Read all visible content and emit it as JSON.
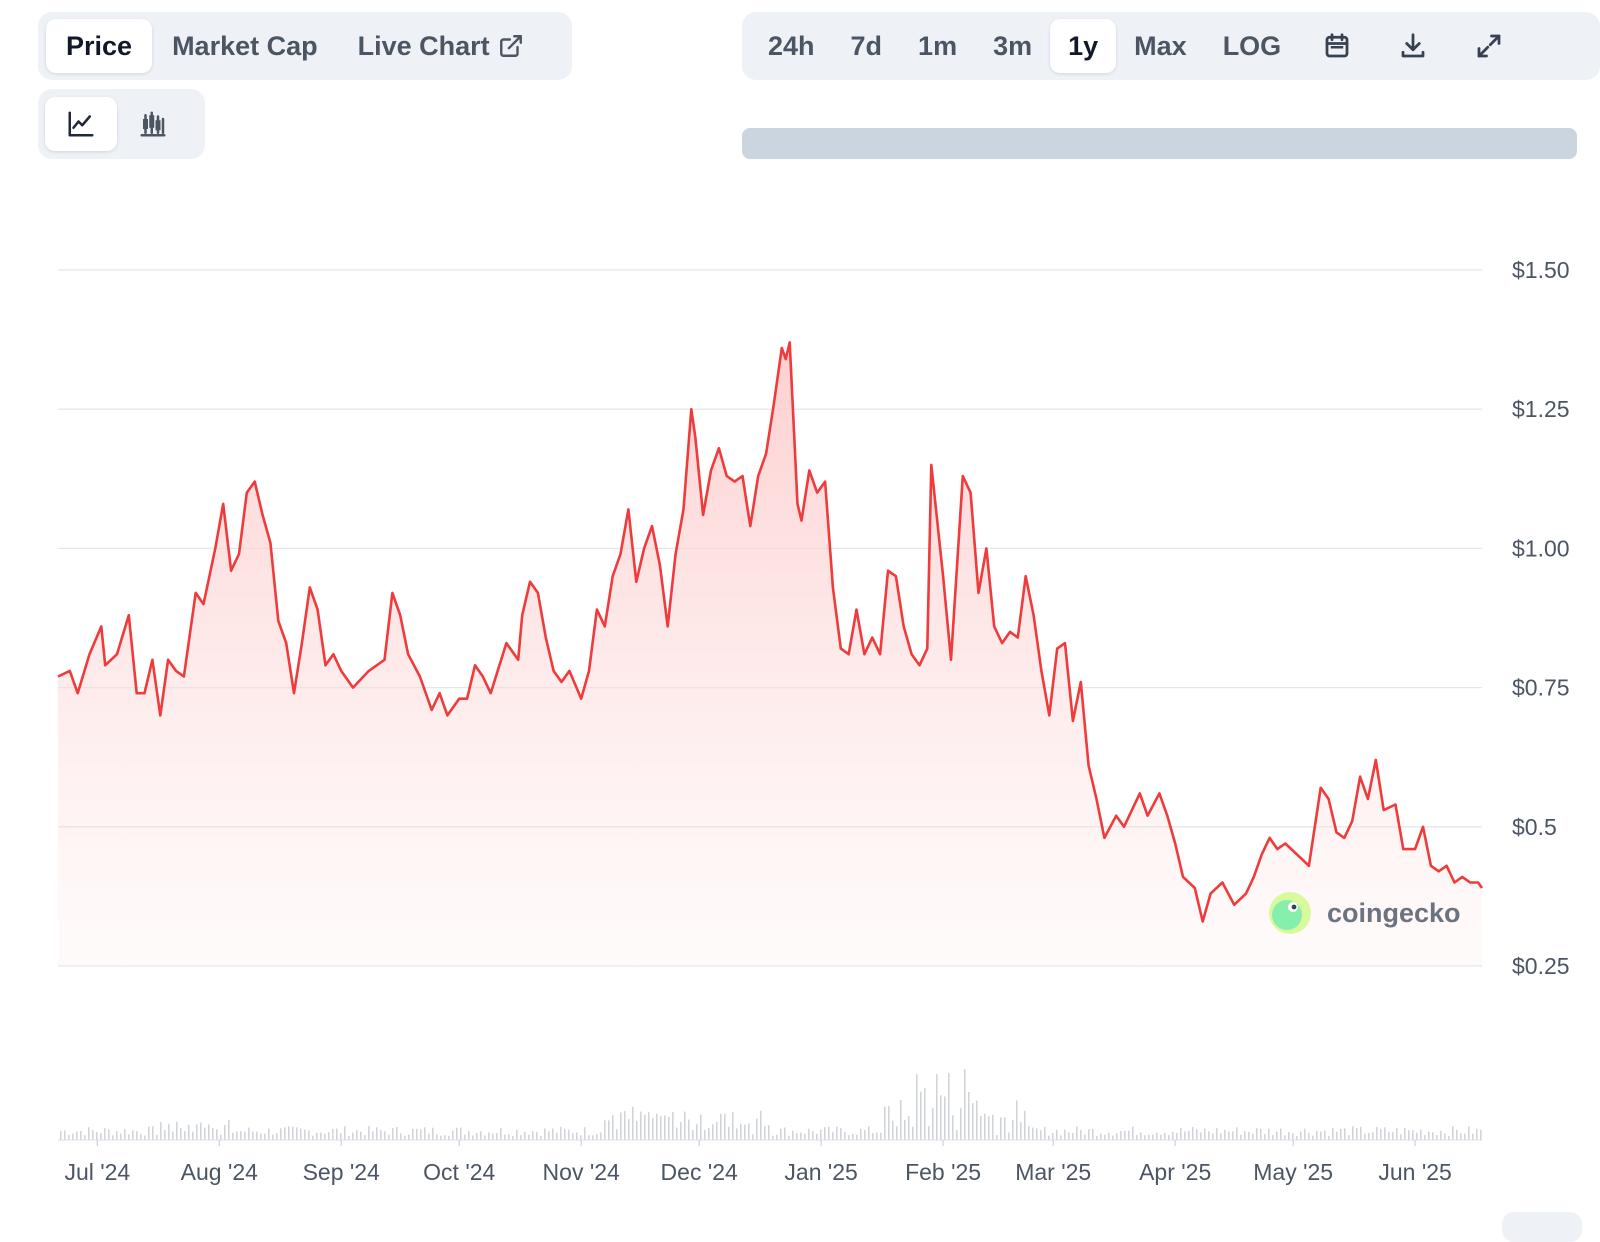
{
  "tabs": [
    {
      "label": "Price",
      "active": true
    },
    {
      "label": "Market Cap",
      "active": false
    },
    {
      "label": "Live Chart",
      "active": false,
      "icon": "external-link-icon"
    }
  ],
  "chart_types": [
    {
      "icon": "line-chart-icon",
      "active": true
    },
    {
      "icon": "candlestick-chart-icon",
      "active": false
    }
  ],
  "ranges": [
    {
      "label": "24h",
      "active": false
    },
    {
      "label": "7d",
      "active": false
    },
    {
      "label": "1m",
      "active": false
    },
    {
      "label": "3m",
      "active": false
    },
    {
      "label": "1y",
      "active": true
    },
    {
      "label": "Max",
      "active": false
    },
    {
      "label": "LOG",
      "active": false
    }
  ],
  "tool_icons": [
    "calendar-icon",
    "download-icon",
    "expand-icon"
  ],
  "watermark": {
    "text": "coingecko",
    "icon": "coingecko-logo-icon"
  },
  "colors": {
    "line": "#ef3b3b",
    "area_top": "#fecaca",
    "grid": "#e5e7eb",
    "volume": "#d1d5db"
  },
  "chart_data": {
    "type": "area",
    "title": "",
    "xlabel": "",
    "ylabel": "",
    "ylim": [
      0.25,
      1.5
    ],
    "yticks": [
      1.5,
      1.25,
      1.0,
      0.75,
      0.5,
      0.25
    ],
    "ytick_labels": [
      "$1.50",
      "$1.25",
      "$1.00",
      "$0.75",
      "$0.5",
      "$0.25"
    ],
    "xticks": [
      {
        "label": "Jul '24",
        "date": "2024-07-01"
      },
      {
        "label": "Aug '24",
        "date": "2024-08-01"
      },
      {
        "label": "Sep '24",
        "date": "2024-09-01"
      },
      {
        "label": "Oct '24",
        "date": "2024-10-01"
      },
      {
        "label": "Nov '24",
        "date": "2024-11-01"
      },
      {
        "label": "Dec '24",
        "date": "2024-12-01"
      },
      {
        "label": "Jan '25",
        "date": "2025-01-01"
      },
      {
        "label": "Feb '25",
        "date": "2025-02-01"
      },
      {
        "label": "Mar '25",
        "date": "2025-03-01"
      },
      {
        "label": "Apr '25",
        "date": "2025-04-01"
      },
      {
        "label": "May '25",
        "date": "2025-05-01"
      },
      {
        "label": "Jun '25",
        "date": "2025-06-01"
      }
    ],
    "x_range": [
      "2024-06-21",
      "2025-06-18"
    ],
    "grid": true,
    "series": [
      {
        "values": [
          [
            "2024-06-21",
            0.77
          ],
          [
            "2024-06-24",
            0.78
          ],
          [
            "2024-06-26",
            0.74
          ],
          [
            "2024-06-29",
            0.81
          ],
          [
            "2024-07-02",
            0.86
          ],
          [
            "2024-07-03",
            0.79
          ],
          [
            "2024-07-06",
            0.81
          ],
          [
            "2024-07-09",
            0.88
          ],
          [
            "2024-07-11",
            0.74
          ],
          [
            "2024-07-13",
            0.74
          ],
          [
            "2024-07-15",
            0.8
          ],
          [
            "2024-07-17",
            0.7
          ],
          [
            "2024-07-19",
            0.8
          ],
          [
            "2024-07-21",
            0.78
          ],
          [
            "2024-07-23",
            0.77
          ],
          [
            "2024-07-26",
            0.92
          ],
          [
            "2024-07-28",
            0.9
          ],
          [
            "2024-07-31",
            1.0
          ],
          [
            "2024-08-02",
            1.08
          ],
          [
            "2024-08-04",
            0.96
          ],
          [
            "2024-08-06",
            0.99
          ],
          [
            "2024-08-08",
            1.1
          ],
          [
            "2024-08-10",
            1.12
          ],
          [
            "2024-08-12",
            1.06
          ],
          [
            "2024-08-14",
            1.01
          ],
          [
            "2024-08-16",
            0.87
          ],
          [
            "2024-08-18",
            0.83
          ],
          [
            "2024-08-20",
            0.74
          ],
          [
            "2024-08-22",
            0.83
          ],
          [
            "2024-08-24",
            0.93
          ],
          [
            "2024-08-26",
            0.89
          ],
          [
            "2024-08-28",
            0.79
          ],
          [
            "2024-08-30",
            0.81
          ],
          [
            "2024-09-01",
            0.78
          ],
          [
            "2024-09-04",
            0.75
          ],
          [
            "2024-09-08",
            0.78
          ],
          [
            "2024-09-12",
            0.8
          ],
          [
            "2024-09-14",
            0.92
          ],
          [
            "2024-09-16",
            0.88
          ],
          [
            "2024-09-18",
            0.81
          ],
          [
            "2024-09-21",
            0.77
          ],
          [
            "2024-09-24",
            0.71
          ],
          [
            "2024-09-26",
            0.74
          ],
          [
            "2024-09-28",
            0.7
          ],
          [
            "2024-10-01",
            0.73
          ],
          [
            "2024-10-03",
            0.73
          ],
          [
            "2024-10-05",
            0.79
          ],
          [
            "2024-10-07",
            0.77
          ],
          [
            "2024-10-09",
            0.74
          ],
          [
            "2024-10-13",
            0.83
          ],
          [
            "2024-10-16",
            0.8
          ],
          [
            "2024-10-17",
            0.88
          ],
          [
            "2024-10-19",
            0.94
          ],
          [
            "2024-10-21",
            0.92
          ],
          [
            "2024-10-23",
            0.84
          ],
          [
            "2024-10-25",
            0.78
          ],
          [
            "2024-10-27",
            0.76
          ],
          [
            "2024-10-29",
            0.78
          ],
          [
            "2024-11-01",
            0.73
          ],
          [
            "2024-11-03",
            0.78
          ],
          [
            "2024-11-05",
            0.89
          ],
          [
            "2024-11-07",
            0.86
          ],
          [
            "2024-11-09",
            0.95
          ],
          [
            "2024-11-11",
            0.99
          ],
          [
            "2024-11-13",
            1.07
          ],
          [
            "2024-11-15",
            0.94
          ],
          [
            "2024-11-17",
            1.0
          ],
          [
            "2024-11-19",
            1.04
          ],
          [
            "2024-11-21",
            0.97
          ],
          [
            "2024-11-23",
            0.86
          ],
          [
            "2024-11-25",
            0.99
          ],
          [
            "2024-11-27",
            1.07
          ],
          [
            "2024-11-29",
            1.25
          ],
          [
            "2024-11-30",
            1.2
          ],
          [
            "2024-12-02",
            1.06
          ],
          [
            "2024-12-04",
            1.14
          ],
          [
            "2024-12-06",
            1.18
          ],
          [
            "2024-12-08",
            1.13
          ],
          [
            "2024-12-10",
            1.12
          ],
          [
            "2024-12-12",
            1.13
          ],
          [
            "2024-12-14",
            1.04
          ],
          [
            "2024-12-16",
            1.13
          ],
          [
            "2024-12-18",
            1.17
          ],
          [
            "2024-12-20",
            1.26
          ],
          [
            "2024-12-22",
            1.36
          ],
          [
            "2024-12-23",
            1.34
          ],
          [
            "2024-12-24",
            1.37
          ],
          [
            "2024-12-26",
            1.08
          ],
          [
            "2024-12-27",
            1.05
          ],
          [
            "2024-12-29",
            1.14
          ],
          [
            "2024-12-31",
            1.1
          ],
          [
            "2025-01-02",
            1.12
          ],
          [
            "2025-01-04",
            0.93
          ],
          [
            "2025-01-06",
            0.82
          ],
          [
            "2025-01-08",
            0.81
          ],
          [
            "2025-01-10",
            0.89
          ],
          [
            "2025-01-12",
            0.81
          ],
          [
            "2025-01-14",
            0.84
          ],
          [
            "2025-01-16",
            0.81
          ],
          [
            "2025-01-18",
            0.96
          ],
          [
            "2025-01-20",
            0.95
          ],
          [
            "2025-01-22",
            0.86
          ],
          [
            "2025-01-24",
            0.81
          ],
          [
            "2025-01-26",
            0.79
          ],
          [
            "2025-01-28",
            0.82
          ],
          [
            "2025-01-29",
            1.15
          ],
          [
            "2025-02-01",
            0.95
          ],
          [
            "2025-02-03",
            0.8
          ],
          [
            "2025-02-06",
            1.13
          ],
          [
            "2025-02-08",
            1.1
          ],
          [
            "2025-02-10",
            0.92
          ],
          [
            "2025-02-12",
            1.0
          ],
          [
            "2025-02-14",
            0.86
          ],
          [
            "2025-02-16",
            0.83
          ],
          [
            "2025-02-18",
            0.85
          ],
          [
            "2025-02-20",
            0.84
          ],
          [
            "2025-02-22",
            0.95
          ],
          [
            "2025-02-24",
            0.88
          ],
          [
            "2025-02-26",
            0.78
          ],
          [
            "2025-02-28",
            0.7
          ],
          [
            "2025-03-02",
            0.82
          ],
          [
            "2025-03-04",
            0.83
          ],
          [
            "2025-03-06",
            0.69
          ],
          [
            "2025-03-08",
            0.76
          ],
          [
            "2025-03-10",
            0.61
          ],
          [
            "2025-03-12",
            0.55
          ],
          [
            "2025-03-14",
            0.48
          ],
          [
            "2025-03-17",
            0.52
          ],
          [
            "2025-03-19",
            0.5
          ],
          [
            "2025-03-21",
            0.53
          ],
          [
            "2025-03-23",
            0.56
          ],
          [
            "2025-03-25",
            0.52
          ],
          [
            "2025-03-28",
            0.56
          ],
          [
            "2025-03-30",
            0.52
          ],
          [
            "2025-04-01",
            0.47
          ],
          [
            "2025-04-03",
            0.41
          ],
          [
            "2025-04-06",
            0.39
          ],
          [
            "2025-04-08",
            0.33
          ],
          [
            "2025-04-10",
            0.38
          ],
          [
            "2025-04-13",
            0.4
          ],
          [
            "2025-04-16",
            0.36
          ],
          [
            "2025-04-19",
            0.38
          ],
          [
            "2025-04-21",
            0.41
          ],
          [
            "2025-04-23",
            0.45
          ],
          [
            "2025-04-25",
            0.48
          ],
          [
            "2025-04-27",
            0.46
          ],
          [
            "2025-04-29",
            0.47
          ],
          [
            "2025-05-02",
            0.45
          ],
          [
            "2025-05-05",
            0.43
          ],
          [
            "2025-05-08",
            0.57
          ],
          [
            "2025-05-10",
            0.55
          ],
          [
            "2025-05-12",
            0.49
          ],
          [
            "2025-05-14",
            0.48
          ],
          [
            "2025-05-16",
            0.51
          ],
          [
            "2025-05-18",
            0.59
          ],
          [
            "2025-05-20",
            0.55
          ],
          [
            "2025-05-22",
            0.62
          ],
          [
            "2025-05-24",
            0.53
          ],
          [
            "2025-05-27",
            0.54
          ],
          [
            "2025-05-29",
            0.46
          ],
          [
            "2025-06-01",
            0.46
          ],
          [
            "2025-06-03",
            0.5
          ],
          [
            "2025-06-05",
            0.43
          ],
          [
            "2025-06-07",
            0.42
          ],
          [
            "2025-06-09",
            0.43
          ],
          [
            "2025-06-11",
            0.4
          ],
          [
            "2025-06-13",
            0.41
          ],
          [
            "2025-06-15",
            0.4
          ],
          [
            "2025-06-17",
            0.4
          ],
          [
            "2025-06-18",
            0.39
          ]
        ]
      }
    ]
  }
}
